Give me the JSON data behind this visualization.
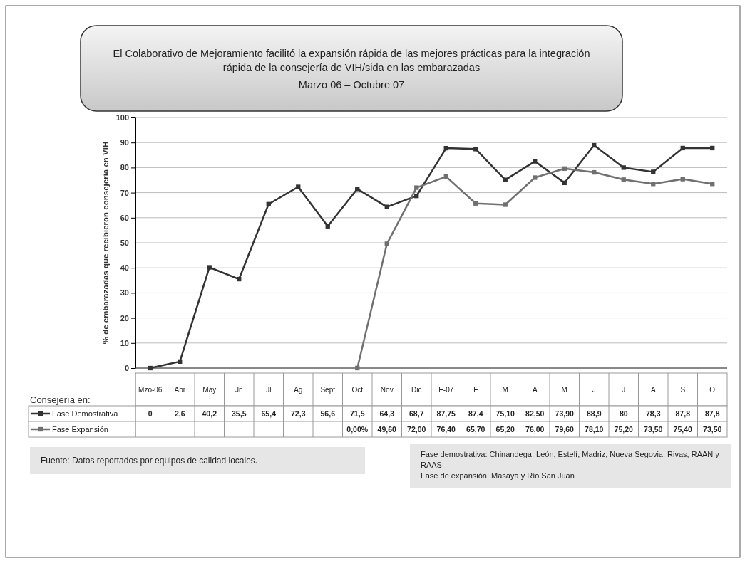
{
  "chart_data": {
    "type": "line",
    "title": "El Colaborativo de Mejoramiento facilitó la expansión rápida de las mejores  prácticas para la integración rápida de la consejería de VIH/sida en las embarazadas",
    "subtitle": "Marzo 06 – Octubre 07",
    "ylabel": "% de embarazadas que recibieron consejería en VIH",
    "legend_title": "Consejería en:",
    "categories": [
      "Mzo-06",
      "Abr",
      "May",
      "Jn",
      "Jl",
      "Ag",
      "Sept",
      "Oct",
      "Nov",
      "Dic",
      "E-07",
      "F",
      "M",
      "A",
      "M",
      "J",
      "J",
      "A",
      "S",
      "O"
    ],
    "series": [
      {
        "name": "Fase Demostrativa",
        "color": "#333333",
        "values": [
          0,
          2.6,
          40.2,
          35.5,
          65.4,
          72.3,
          56.6,
          71.5,
          64.3,
          68.7,
          87.75,
          87.4,
          75.1,
          82.5,
          73.9,
          88.9,
          80,
          78.3,
          87.8,
          87.8
        ],
        "value_labels": [
          "0",
          "2,6",
          "40,2",
          "35,5",
          "65,4",
          "72,3",
          "56,6",
          "71,5",
          "64,3",
          "68,7",
          "87,75",
          "87,4",
          "75,10",
          "82,50",
          "73,90",
          "88,9",
          "80",
          "78,3",
          "87,8",
          "87,8"
        ]
      },
      {
        "name": "Fase Expansión",
        "color": "#707070",
        "values": [
          null,
          null,
          null,
          null,
          null,
          null,
          null,
          0,
          49.6,
          72,
          76.4,
          65.7,
          65.2,
          76,
          79.6,
          78.1,
          75.2,
          73.5,
          75.4,
          73.5
        ],
        "value_labels": [
          null,
          null,
          null,
          null,
          null,
          null,
          null,
          "0,00%",
          "49,60",
          "72,00",
          "76,40",
          "65,70",
          "65,20",
          "76,00",
          "79,60",
          "78,10",
          "75,20",
          "73,50",
          "75,40",
          "73,50"
        ]
      }
    ],
    "ylim": [
      0,
      100
    ],
    "yticks": [
      0,
      10,
      20,
      30,
      40,
      50,
      60,
      70,
      80,
      90,
      100
    ],
    "grid": "y",
    "marker": "square",
    "legend": "bottom",
    "line_style": "solid",
    "annotations": [
      "Fuente: Datos reportados por equipos de calidad locales.",
      "Fase demostrativa: Chinandega, León, Estelí, Madriz, Nueva Segovia, Rivas, RAAN y RAAS.\nFase de expansión: Masaya y Río San Juan"
    ]
  }
}
